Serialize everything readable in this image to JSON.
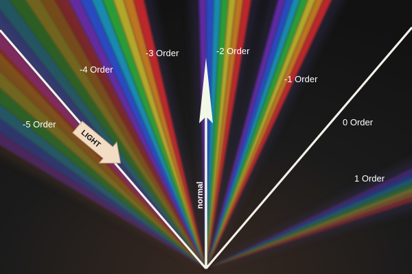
{
  "diagram": {
    "orders": [
      {
        "label": "-5 Order",
        "angle_deg": -50
      },
      {
        "label": "-4 Order",
        "angle_deg": -35
      },
      {
        "label": "-3 Order",
        "angle_deg": -20
      },
      {
        "label": "-2 Order",
        "angle_deg": 4
      },
      {
        "label": "-1 Order",
        "angle_deg": 20
      },
      {
        "label": "0 Order",
        "angle_deg": 45
      },
      {
        "label": "1 Order",
        "angle_deg": 68
      }
    ],
    "incident_label": "LIGHT",
    "normal_label": "normal",
    "spectrum_colors": [
      "#7a2fd0",
      "#2f5cff",
      "#18b7e8",
      "#2fd13a",
      "#f2e12a",
      "#ff9a1f",
      "#ff2a2a"
    ],
    "colors": {
      "background": "#161616",
      "incident_beam": "#f4f1ea",
      "arrow_fill": "#f3dcc4",
      "normal_arrow": "#f1f8e6"
    }
  }
}
